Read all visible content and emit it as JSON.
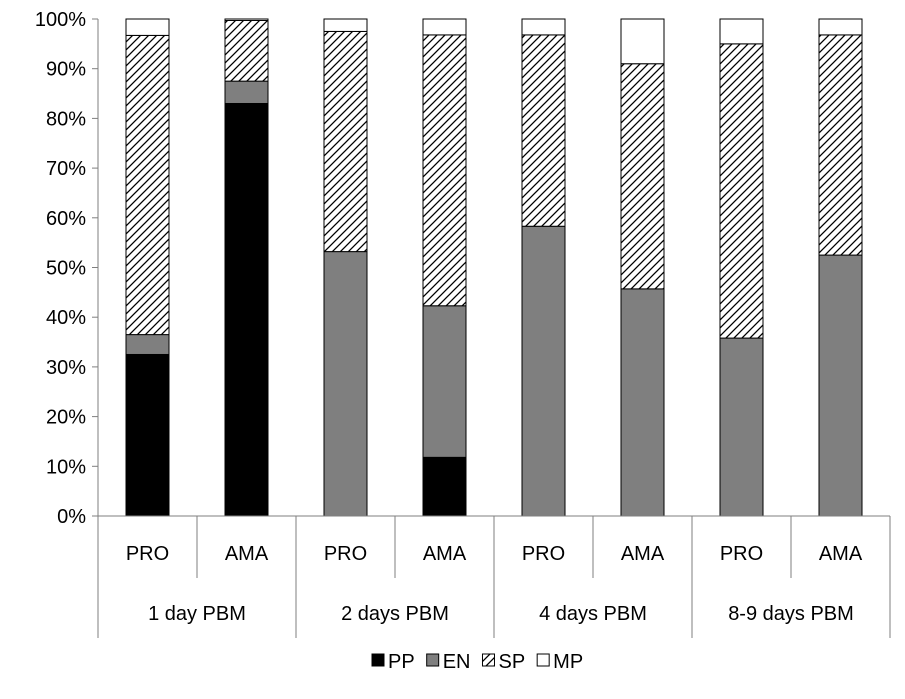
{
  "chart_data": {
    "type": "bar",
    "stacked": true,
    "normalized_percent": true,
    "categories": [
      "PRO",
      "AMA",
      "PRO",
      "AMA",
      "PRO",
      "AMA",
      "PRO",
      "AMA"
    ],
    "groups": [
      "1 day PBM",
      "2 days PBM",
      "4 days PBM",
      "8-9 days PBM"
    ],
    "series": [
      {
        "name": "PP",
        "values": [
          32.5,
          83.0,
          0,
          11.8,
          0,
          0,
          0,
          0
        ]
      },
      {
        "name": "EN",
        "values": [
          4.0,
          4.5,
          53.2,
          30.5,
          58.3,
          45.7,
          35.8,
          52.5
        ]
      },
      {
        "name": "SP",
        "values": [
          60.2,
          12.2,
          44.3,
          54.5,
          38.5,
          45.3,
          59.2,
          44.3
        ]
      },
      {
        "name": "MP",
        "values": [
          3.3,
          0.3,
          2.5,
          3.2,
          3.2,
          9.0,
          5.0,
          3.2
        ]
      }
    ],
    "colors": {
      "PP": "#000000",
      "EN": "#7f7f7f",
      "SP": "hatch",
      "MP": "#ffffff"
    },
    "yticks": [
      "0%",
      "10%",
      "20%",
      "30%",
      "40%",
      "50%",
      "60%",
      "70%",
      "80%",
      "90%",
      "100%"
    ],
    "ylim": [
      0,
      100
    ],
    "grid": false,
    "legend_position": "bottom"
  }
}
